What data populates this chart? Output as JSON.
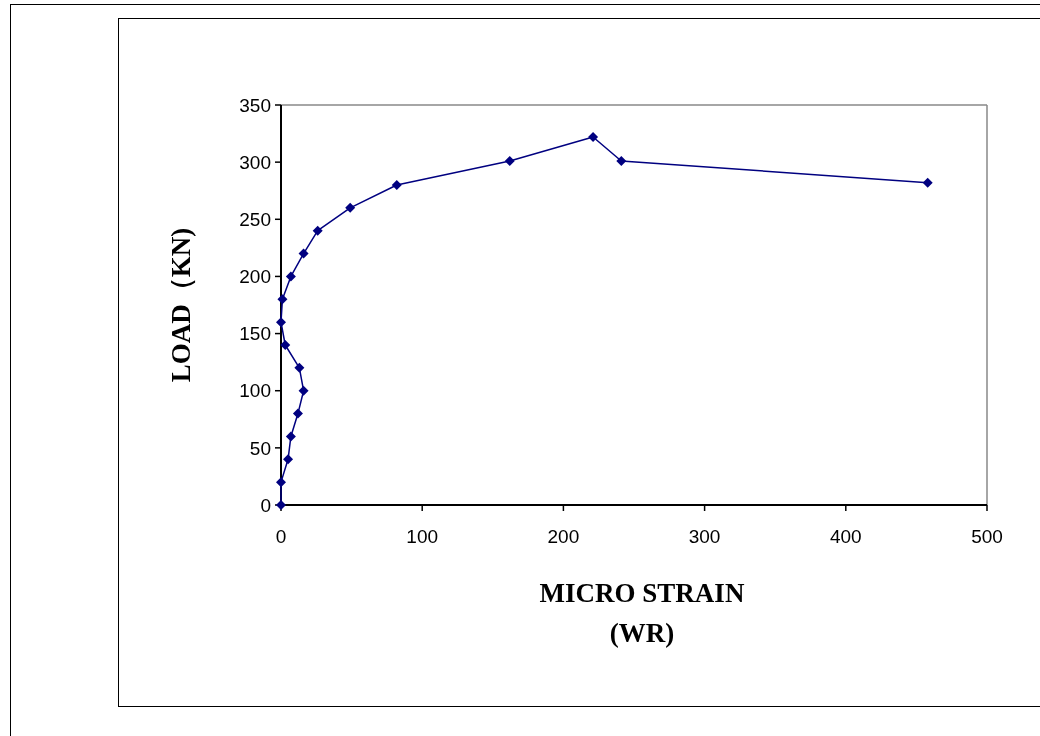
{
  "chart_data": {
    "type": "line",
    "xlabel": "MICRO STRAIN\n(WR)",
    "ylabel": "LOAD（KN)",
    "xlim": [
      0,
      500
    ],
    "xticks": [
      0,
      100,
      200,
      300,
      400,
      500
    ],
    "ylim": [
      0,
      350
    ],
    "yticks": [
      0,
      50,
      100,
      150,
      200,
      250,
      300,
      350
    ],
    "grid": false,
    "marker": "diamond",
    "line_style": "solid",
    "series": [
      {
        "color": "#000080",
        "x": [
          0,
          0,
          5,
          7,
          12,
          16,
          13,
          3,
          0,
          1,
          7,
          16,
          26,
          49,
          82,
          162,
          221,
          241,
          458
        ],
        "values": [
          0,
          20,
          40,
          60,
          80,
          100,
          120,
          140,
          160,
          180,
          200,
          220,
          240,
          260,
          280,
          301,
          322,
          301,
          282
        ]
      }
    ]
  }
}
